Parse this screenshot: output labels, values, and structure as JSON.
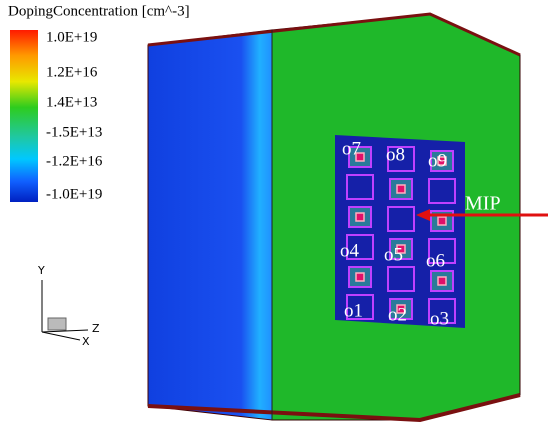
{
  "legend": {
    "title": "DopingConcentration [cm^-3]",
    "labels": [
      "1.0E+19",
      "1.2E+16",
      "1.4E+13",
      "-1.5E+13",
      "-1.2E+16",
      "-1.0E+19"
    ]
  },
  "axes": {
    "y": "Y",
    "z": "Z",
    "x": "X"
  },
  "annotation": "MIP",
  "electrodes": [
    "o1",
    "o2",
    "o3",
    "o4",
    "o5",
    "o6",
    "o7",
    "o8",
    "o9"
  ]
}
